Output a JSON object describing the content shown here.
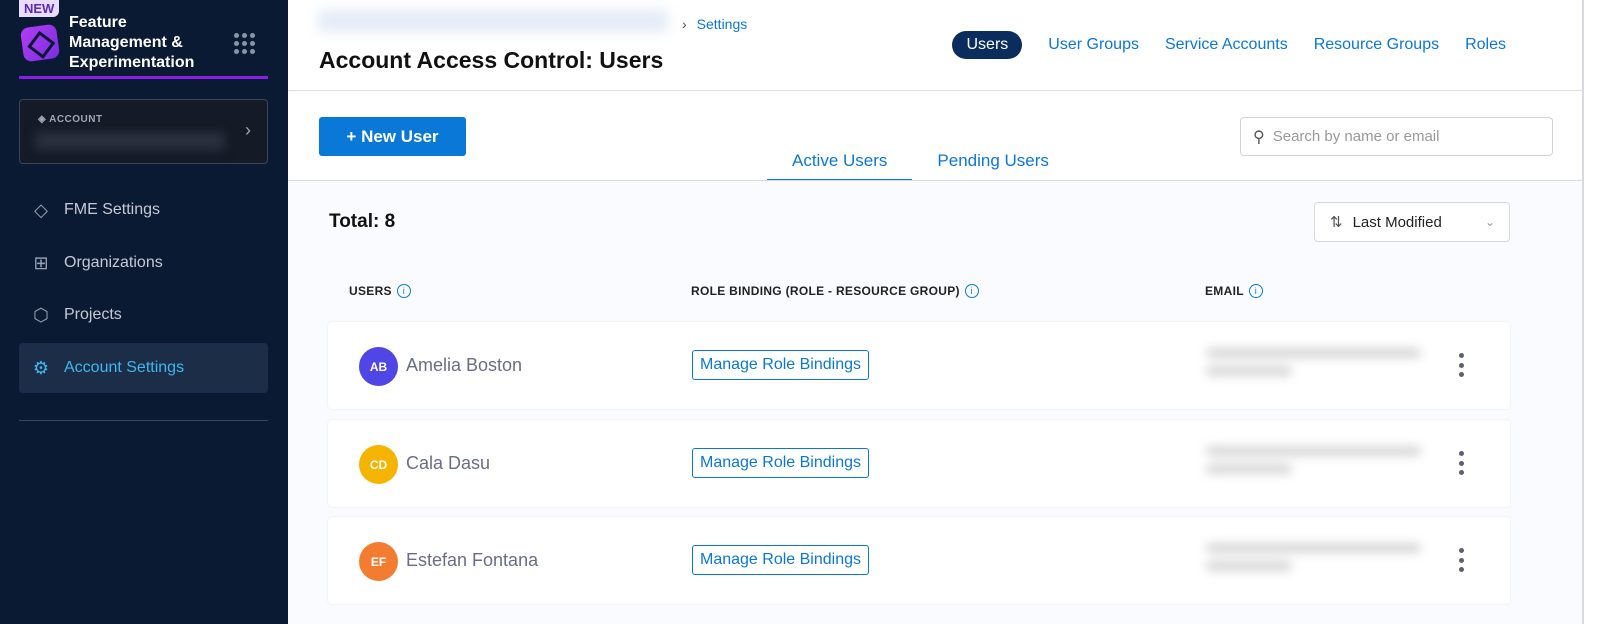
{
  "sidebar": {
    "badge": "NEW",
    "app_title": "Feature Management & Experimentation",
    "account_label": "ACCOUNT",
    "items": [
      {
        "label": "FME Settings",
        "icon": "fme-icon"
      },
      {
        "label": "Organizations",
        "icon": "org-chart-icon"
      },
      {
        "label": "Projects",
        "icon": "cube-icon"
      },
      {
        "label": "Account Settings",
        "icon": "gear-icon",
        "active": true
      }
    ]
  },
  "header": {
    "breadcrumb": "Settings",
    "title": "Account Access Control: Users",
    "tabs": [
      {
        "label": "Users",
        "active": true
      },
      {
        "label": "User Groups"
      },
      {
        "label": "Service Accounts"
      },
      {
        "label": "Resource Groups"
      },
      {
        "label": "Roles"
      }
    ]
  },
  "toolbar": {
    "new_user": "+ New User",
    "search_placeholder": "Search by name or email"
  },
  "subtabs": [
    {
      "label": "Active Users",
      "active": true
    },
    {
      "label": "Pending Users"
    }
  ],
  "list": {
    "total": "Total: 8",
    "sort": "Last Modified",
    "columns": [
      "USERS",
      "ROLE BINDING (ROLE - RESOURCE GROUP)",
      "EMAIL"
    ],
    "rows": [
      {
        "initials": "AB",
        "name": "Amelia Boston",
        "color": "#4f46e5",
        "action": "Manage Role Bindings"
      },
      {
        "initials": "CD",
        "name": "Cala Dasu",
        "color": "#f5b400",
        "action": "Manage Role Bindings"
      },
      {
        "initials": "EF",
        "name": "Estefan Fontana",
        "color": "#f47c30",
        "action": "Manage Role Bindings"
      }
    ]
  },
  "colors": {
    "accent": "#0a78d6",
    "sidebar": "#0b1a33",
    "brand": "#8a1ee6"
  }
}
